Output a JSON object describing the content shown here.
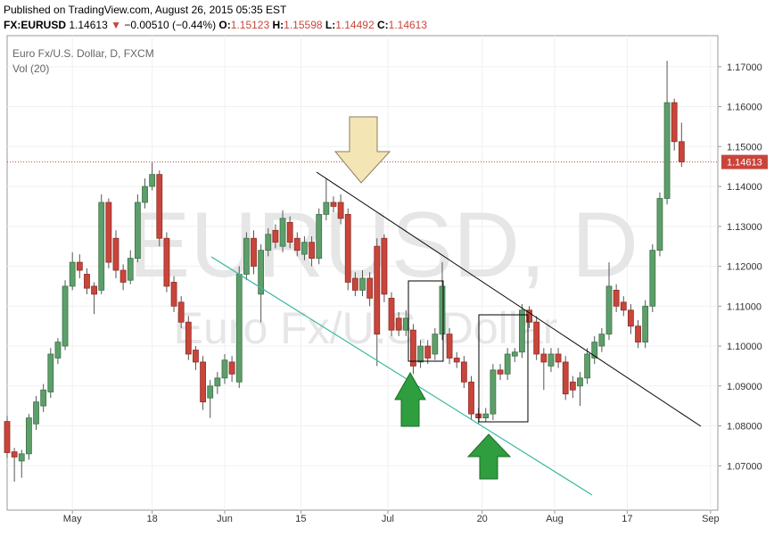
{
  "header": {
    "published": "Published on TradingView.com, August 26, 2015 05:35 EST",
    "symbol": "FX:EURUSD",
    "arrow": "▼",
    "change": "−0.00510 (−0.44%)",
    "ohlc_labels": [
      "O:",
      "H:",
      "L:",
      "C:"
    ]
  },
  "chart_data": {
    "type": "candlestick",
    "title": "Euro Fx/U.S. Dollar, D, FXCM",
    "subtitle": "Vol (20)",
    "watermark": [
      "EURUSD, D",
      "Euro Fx/U.S. Dollar"
    ],
    "up_color": "#5d9e6b",
    "down_color": "#c9453b",
    "open": [
      1.0811,
      1.0735,
      1.0712,
      1.073,
      1.0805,
      1.085,
      1.0885,
      1.097,
      1.1,
      1.115,
      1.121,
      1.118,
      1.115,
      1.114,
      1.136,
      1.127,
      1.119,
      1.1165,
      1.122,
      1.136,
      1.14,
      1.143,
      1.127,
      1.116,
      1.111,
      1.106,
      1.099,
      1.096,
      1.087,
      1.09,
      1.092,
      1.096,
      1.091,
      1.118,
      1.127,
      1.113,
      1.124,
      1.129,
      1.125,
      1.131,
      1.127,
      1.123,
      1.126,
      1.122,
      1.133,
      1.136,
      1.136,
      1.133,
      1.117,
      1.114,
      1.117,
      1.125,
      1.127,
      1.112,
      1.107,
      1.104,
      1.104,
      1.096,
      1.1,
      1.098,
      1.103,
      1.103,
      1.097,
      1.096,
      1.091,
      1.083,
      1.082,
      1.083,
      1.094,
      1.093,
      1.0975,
      1.0985,
      1.109,
      1.106,
      1.098,
      1.095,
      1.098,
      1.096,
      1.091,
      1.09,
      1.092,
      1.097,
      1.1,
      1.103,
      1.114,
      1.111,
      1.109,
      1.105,
      1.101,
      1.11,
      1.124,
      1.137,
      1.161,
      1.15123
    ],
    "close": [
      1.0733,
      1.0722,
      1.073,
      1.082,
      1.086,
      1.089,
      1.098,
      1.101,
      1.115,
      1.121,
      1.119,
      1.1145,
      1.113,
      1.136,
      1.121,
      1.119,
      1.116,
      1.122,
      1.136,
      1.14,
      1.143,
      1.127,
      1.115,
      1.11,
      1.106,
      1.098,
      1.096,
      1.086,
      1.09,
      1.092,
      1.0965,
      1.093,
      1.118,
      1.127,
      1.12,
      1.124,
      1.128,
      1.126,
      1.132,
      1.126,
      1.124,
      1.126,
      1.122,
      1.133,
      1.136,
      1.135,
      1.132,
      1.116,
      1.114,
      1.117,
      1.112,
      1.103,
      1.113,
      1.104,
      1.104,
      1.107,
      1.095,
      1.1,
      1.097,
      1.103,
      1.115,
      1.097,
      1.096,
      1.091,
      1.083,
      1.082,
      1.083,
      1.094,
      1.093,
      1.098,
      1.0985,
      1.109,
      1.106,
      1.098,
      1.096,
      1.098,
      1.096,
      1.088,
      1.089,
      1.092,
      1.098,
      1.101,
      1.103,
      1.115,
      1.11,
      1.109,
      1.105,
      1.101,
      1.11,
      1.124,
      1.137,
      1.161,
      1.15123,
      1.14613
    ],
    "high": [
      1.0825,
      1.0745,
      1.074,
      1.083,
      1.0875,
      1.0905,
      1.0995,
      1.102,
      1.1165,
      1.1235,
      1.123,
      1.1195,
      1.116,
      1.138,
      1.137,
      1.129,
      1.1205,
      1.124,
      1.138,
      1.142,
      1.146,
      1.144,
      1.1285,
      1.1175,
      1.1125,
      1.1075,
      1.1,
      1.0975,
      1.0915,
      1.0935,
      1.098,
      1.0975,
      1.12,
      1.1285,
      1.129,
      1.1255,
      1.1295,
      1.1305,
      1.134,
      1.1325,
      1.1285,
      1.1275,
      1.1275,
      1.1345,
      1.142,
      1.1375,
      1.138,
      1.1345,
      1.1185,
      1.119,
      1.1185,
      1.127,
      1.128,
      1.1135,
      1.1085,
      1.109,
      1.1055,
      1.1015,
      1.1015,
      1.1045,
      1.121,
      1.1045,
      1.0985,
      1.0975,
      1.0925,
      1.0845,
      1.0845,
      1.0955,
      1.0955,
      1.0995,
      1.0995,
      1.1105,
      1.11,
      1.1075,
      1.0995,
      1.0995,
      1.0995,
      1.0975,
      1.0925,
      1.0935,
      1.0995,
      1.1025,
      1.1045,
      1.121,
      1.1155,
      1.1125,
      1.1105,
      1.1065,
      1.1115,
      1.1255,
      1.1385,
      1.1715,
      1.162,
      1.15598
    ],
    "low": [
      1.072,
      1.066,
      1.067,
      1.0715,
      1.079,
      1.0835,
      1.087,
      1.0955,
      1.099,
      1.114,
      1.117,
      1.113,
      1.108,
      1.113,
      1.1195,
      1.117,
      1.114,
      1.1155,
      1.121,
      1.1345,
      1.139,
      1.125,
      1.1135,
      1.1085,
      1.1045,
      1.0965,
      1.094,
      1.084,
      1.082,
      1.088,
      1.0905,
      1.091,
      1.0895,
      1.1165,
      1.118,
      1.106,
      1.1225,
      1.1245,
      1.1235,
      1.1245,
      1.1225,
      1.1215,
      1.12,
      1.1205,
      1.1315,
      1.1335,
      1.1305,
      1.114,
      1.1125,
      1.1125,
      1.11,
      1.095,
      1.111,
      1.1025,
      1.1025,
      1.1025,
      1.093,
      1.0945,
      1.0955,
      1.0965,
      1.1015,
      1.0955,
      1.0945,
      1.0895,
      1.0815,
      1.0805,
      1.081,
      1.0815,
      1.0915,
      1.0915,
      1.096,
      1.097,
      1.1045,
      1.0965,
      1.089,
      1.0935,
      1.0945,
      1.0865,
      1.087,
      1.085,
      1.0905,
      1.0955,
      1.0985,
      1.1015,
      1.1085,
      1.1075,
      1.103,
      1.0995,
      1.0995,
      1.1085,
      1.1225,
      1.1355,
      1.149,
      1.14492
    ],
    "xlim": [
      0,
      98
    ],
    "xticks": [
      {
        "value": 9,
        "label": "May"
      },
      {
        "value": 20,
        "label": "18"
      },
      {
        "value": 30,
        "label": "Jun"
      },
      {
        "value": 40.5,
        "label": "15"
      },
      {
        "value": 52.5,
        "label": "Jul"
      },
      {
        "value": 65.5,
        "label": "20"
      },
      {
        "value": 75.5,
        "label": "Aug"
      },
      {
        "value": 85.5,
        "label": "17"
      },
      {
        "value": 97,
        "label": "Sep"
      }
    ],
    "ylim": [
      1.05889,
      1.17778
    ],
    "yticks": [
      {
        "value": 1.07,
        "label": "1.07000"
      },
      {
        "value": 1.08,
        "label": "1.08000"
      },
      {
        "value": 1.09,
        "label": "1.09000"
      },
      {
        "value": 1.1,
        "label": "1.10000"
      },
      {
        "value": 1.11,
        "label": "1.11000"
      },
      {
        "value": 1.12,
        "label": "1.12000"
      },
      {
        "value": 1.13,
        "label": "1.13000"
      },
      {
        "value": 1.14,
        "label": "1.14000"
      },
      {
        "value": 1.15,
        "label": "1.15000"
      },
      {
        "value": 1.16,
        "label": "1.16000"
      },
      {
        "value": 1.17,
        "label": "1.17000"
      }
    ]
  }
}
